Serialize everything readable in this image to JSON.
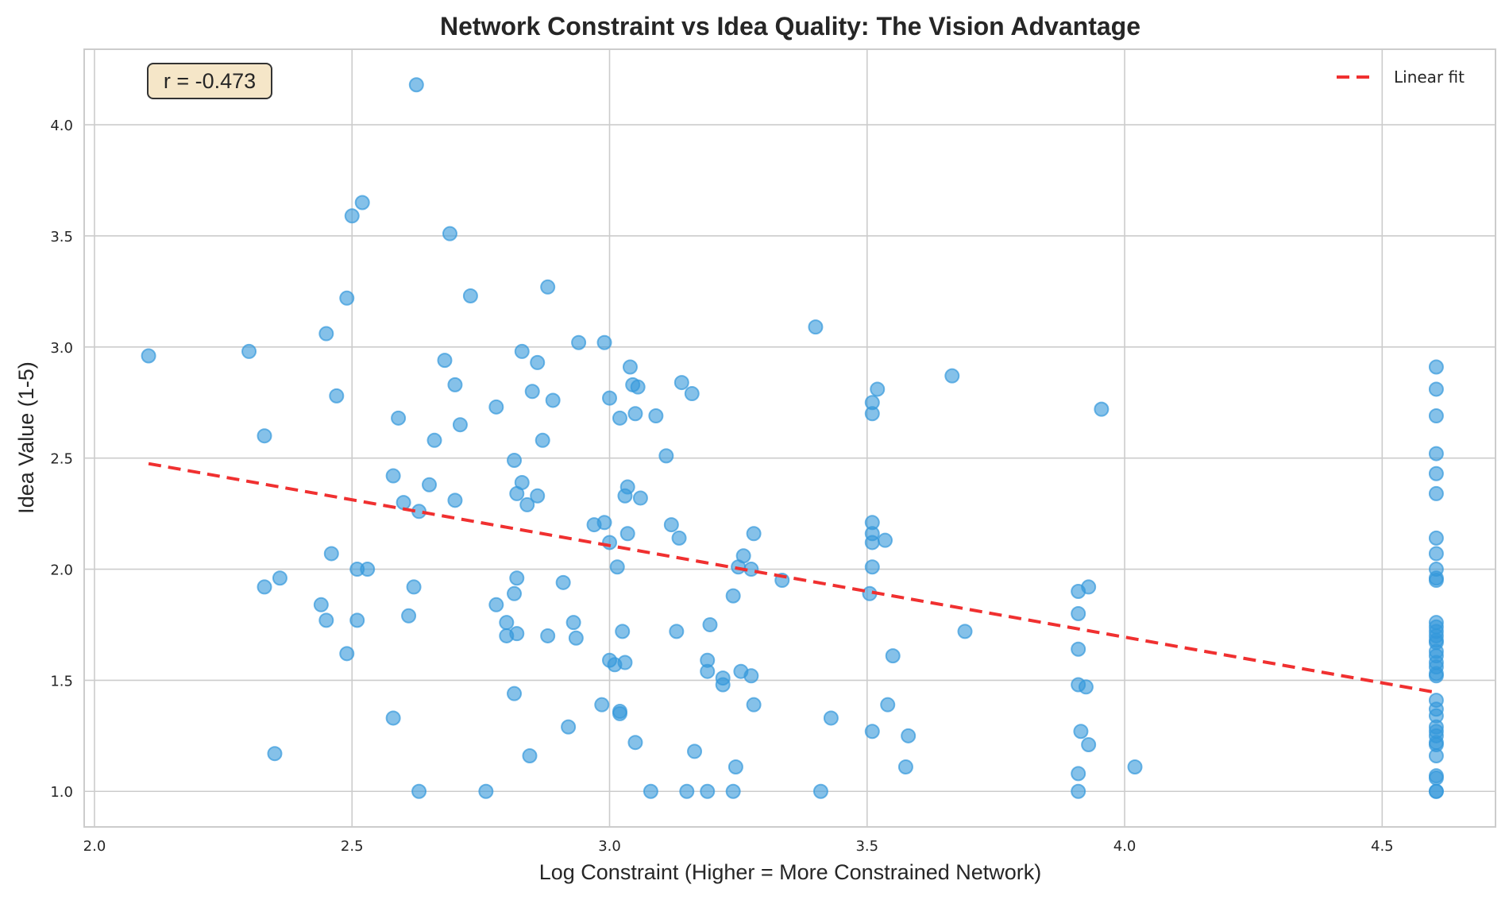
{
  "chart_data": {
    "type": "scatter",
    "title": "Network Constraint vs Idea Quality: The Vision Advantage",
    "xlabel": "Log Constraint (Higher = More Constrained Network)",
    "ylabel": "Idea Value (1-5)",
    "xlim": [
      1.98,
      4.72
    ],
    "ylim": [
      0.84,
      4.34
    ],
    "xticks": [
      "2.0",
      "2.5",
      "3.0",
      "3.5",
      "4.0",
      "4.5"
    ],
    "xtick_values": [
      2.0,
      2.5,
      3.0,
      3.5,
      4.0,
      4.5
    ],
    "yticks": [
      "1.0",
      "1.5",
      "2.0",
      "2.5",
      "3.0",
      "3.5",
      "4.0"
    ],
    "ytick_values": [
      1.0,
      1.5,
      2.0,
      2.5,
      3.0,
      3.5,
      4.0
    ],
    "grid": true,
    "legend": {
      "position": "top-right",
      "entries": [
        "Linear fit"
      ]
    },
    "annotation": "r = -0.473",
    "colors": {
      "points": "#3498db",
      "fit": "#f03030",
      "annotation_bg": "#f5e6c8"
    },
    "fit_line": {
      "x": [
        2.105,
        4.605
      ],
      "y": [
        2.475,
        1.445
      ]
    },
    "points": [
      [
        2.105,
        2.96
      ],
      [
        2.3,
        2.98
      ],
      [
        2.33,
        2.6
      ],
      [
        2.33,
        1.92
      ],
      [
        2.35,
        1.17
      ],
      [
        2.36,
        1.96
      ],
      [
        2.44,
        1.84
      ],
      [
        2.45,
        1.77
      ],
      [
        2.45,
        3.06
      ],
      [
        2.46,
        2.07
      ],
      [
        2.47,
        2.78
      ],
      [
        2.49,
        3.22
      ],
      [
        2.49,
        1.62
      ],
      [
        2.5,
        3.59
      ],
      [
        2.51,
        2.0
      ],
      [
        2.51,
        1.77
      ],
      [
        2.52,
        3.65
      ],
      [
        2.53,
        2.0
      ],
      [
        2.58,
        2.42
      ],
      [
        2.58,
        1.33
      ],
      [
        2.59,
        2.68
      ],
      [
        2.6,
        2.3
      ],
      [
        2.61,
        1.79
      ],
      [
        2.62,
        1.92
      ],
      [
        2.625,
        4.18
      ],
      [
        2.63,
        1.0
      ],
      [
        2.63,
        2.26
      ],
      [
        2.65,
        2.38
      ],
      [
        2.66,
        2.58
      ],
      [
        2.68,
        2.94
      ],
      [
        2.69,
        3.51
      ],
      [
        2.7,
        2.83
      ],
      [
        2.7,
        2.31
      ],
      [
        2.71,
        2.65
      ],
      [
        2.73,
        3.23
      ],
      [
        2.76,
        1.0
      ],
      [
        2.78,
        2.73
      ],
      [
        2.78,
        1.84
      ],
      [
        2.8,
        1.7
      ],
      [
        2.8,
        1.76
      ],
      [
        2.815,
        2.49
      ],
      [
        2.815,
        1.89
      ],
      [
        2.815,
        1.44
      ],
      [
        2.82,
        1.71
      ],
      [
        2.82,
        1.96
      ],
      [
        2.82,
        2.34
      ],
      [
        2.83,
        2.39
      ],
      [
        2.83,
        2.98
      ],
      [
        2.84,
        2.29
      ],
      [
        2.845,
        1.16
      ],
      [
        2.85,
        2.8
      ],
      [
        2.86,
        2.93
      ],
      [
        2.86,
        2.33
      ],
      [
        2.87,
        2.58
      ],
      [
        2.88,
        3.27
      ],
      [
        2.88,
        1.7
      ],
      [
        2.89,
        2.76
      ],
      [
        2.91,
        1.94
      ],
      [
        2.92,
        1.29
      ],
      [
        2.93,
        1.76
      ],
      [
        2.935,
        1.69
      ],
      [
        2.94,
        3.02
      ],
      [
        2.97,
        2.2
      ],
      [
        2.985,
        1.39
      ],
      [
        2.99,
        2.21
      ],
      [
        2.99,
        3.02
      ],
      [
        3.0,
        2.12
      ],
      [
        3.0,
        1.59
      ],
      [
        3.0,
        2.77
      ],
      [
        3.01,
        1.57
      ],
      [
        3.015,
        2.01
      ],
      [
        3.02,
        2.68
      ],
      [
        3.02,
        1.36
      ],
      [
        3.02,
        1.35
      ],
      [
        3.025,
        1.72
      ],
      [
        3.03,
        2.33
      ],
      [
        3.03,
        1.58
      ],
      [
        3.035,
        2.37
      ],
      [
        3.035,
        2.16
      ],
      [
        3.04,
        2.91
      ],
      [
        3.045,
        2.83
      ],
      [
        3.05,
        1.22
      ],
      [
        3.05,
        2.7
      ],
      [
        3.055,
        2.82
      ],
      [
        3.06,
        2.32
      ],
      [
        3.08,
        1.0
      ],
      [
        3.09,
        2.69
      ],
      [
        3.11,
        2.51
      ],
      [
        3.12,
        2.2
      ],
      [
        3.13,
        1.72
      ],
      [
        3.135,
        2.14
      ],
      [
        3.14,
        2.84
      ],
      [
        3.15,
        1.0
      ],
      [
        3.16,
        2.79
      ],
      [
        3.165,
        1.18
      ],
      [
        3.19,
        1.59
      ],
      [
        3.19,
        1.54
      ],
      [
        3.19,
        1.0
      ],
      [
        3.195,
        1.75
      ],
      [
        3.22,
        1.51
      ],
      [
        3.22,
        1.48
      ],
      [
        3.24,
        1.88
      ],
      [
        3.24,
        1.0
      ],
      [
        3.245,
        1.11
      ],
      [
        3.25,
        2.01
      ],
      [
        3.255,
        1.54
      ],
      [
        3.26,
        2.06
      ],
      [
        3.275,
        1.52
      ],
      [
        3.275,
        2.0
      ],
      [
        3.28,
        1.39
      ],
      [
        3.28,
        2.16
      ],
      [
        3.335,
        1.95
      ],
      [
        3.4,
        3.09
      ],
      [
        3.41,
        1.0
      ],
      [
        3.43,
        1.33
      ],
      [
        3.505,
        1.89
      ],
      [
        3.51,
        2.75
      ],
      [
        3.51,
        2.7
      ],
      [
        3.51,
        2.21
      ],
      [
        3.51,
        2.16
      ],
      [
        3.51,
        2.12
      ],
      [
        3.51,
        2.01
      ],
      [
        3.51,
        1.27
      ],
      [
        3.52,
        2.81
      ],
      [
        3.535,
        2.13
      ],
      [
        3.54,
        1.39
      ],
      [
        3.55,
        1.61
      ],
      [
        3.575,
        1.11
      ],
      [
        3.58,
        1.25
      ],
      [
        3.665,
        2.87
      ],
      [
        3.69,
        1.72
      ],
      [
        3.91,
        1.9
      ],
      [
        3.91,
        1.8
      ],
      [
        3.91,
        1.64
      ],
      [
        3.91,
        1.48
      ],
      [
        3.91,
        1.08
      ],
      [
        3.91,
        1.0
      ],
      [
        3.915,
        1.27
      ],
      [
        3.925,
        1.47
      ],
      [
        3.93,
        1.92
      ],
      [
        3.93,
        1.21
      ],
      [
        3.955,
        2.72
      ],
      [
        4.02,
        1.11
      ],
      [
        4.605,
        2.91
      ],
      [
        4.605,
        2.81
      ],
      [
        4.605,
        2.69
      ],
      [
        4.605,
        2.52
      ],
      [
        4.605,
        2.43
      ],
      [
        4.605,
        2.34
      ],
      [
        4.605,
        2.14
      ],
      [
        4.605,
        2.07
      ],
      [
        4.605,
        2.0
      ],
      [
        4.605,
        1.96
      ],
      [
        4.605,
        1.95
      ],
      [
        4.605,
        1.76
      ],
      [
        4.605,
        1.74
      ],
      [
        4.605,
        1.72
      ],
      [
        4.605,
        1.7
      ],
      [
        4.605,
        1.68
      ],
      [
        4.605,
        1.67
      ],
      [
        4.605,
        1.63
      ],
      [
        4.605,
        1.61
      ],
      [
        4.605,
        1.58
      ],
      [
        4.605,
        1.56
      ],
      [
        4.605,
        1.53
      ],
      [
        4.605,
        1.52
      ],
      [
        4.605,
        1.41
      ],
      [
        4.605,
        1.37
      ],
      [
        4.605,
        1.34
      ],
      [
        4.605,
        1.29
      ],
      [
        4.605,
        1.27
      ],
      [
        4.605,
        1.25
      ],
      [
        4.605,
        1.22
      ],
      [
        4.605,
        1.21
      ],
      [
        4.605,
        1.16
      ],
      [
        4.605,
        1.07
      ],
      [
        4.605,
        1.06
      ],
      [
        4.605,
        1.0
      ],
      [
        4.605,
        1.0
      ]
    ]
  }
}
